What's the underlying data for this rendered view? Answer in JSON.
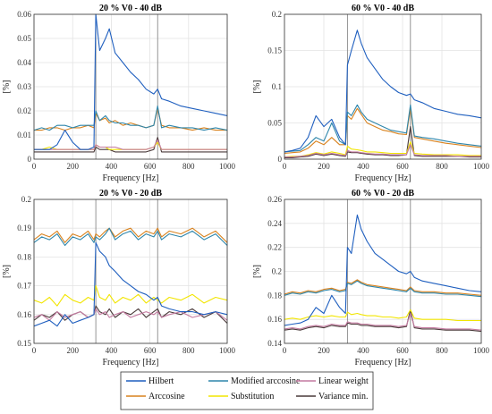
{
  "figure": {
    "legend": [
      {
        "name": "Hilbert",
        "color": "#1f5fbf"
      },
      {
        "name": "Modified arccosine",
        "color": "#2e86ab"
      },
      {
        "name": "Linear weight",
        "color": "#c47aa0"
      },
      {
        "name": "Arccosine",
        "color": "#d9821e"
      },
      {
        "name": "Substitution",
        "color": "#f2e500"
      },
      {
        "name": "Variance min.",
        "color": "#4a3a3a"
      }
    ],
    "x_ticks": [
      "0",
      "200",
      "400",
      "600",
      "800",
      "1000"
    ]
  },
  "chart_data": [
    {
      "type": "line",
      "title": "20 % V0 - 40 dB",
      "xlabel": "Frequency [Hz]",
      "ylabel": "[%]",
      "xlim": [
        0,
        1000
      ],
      "ylim": [
        0,
        0.06
      ],
      "y_ticks": [
        "0",
        "0.01",
        "0.02",
        "0.03",
        "0.04",
        "0.05",
        "0.06"
      ],
      "vlines": [
        320,
        640
      ],
      "x": [
        0,
        40,
        80,
        120,
        160,
        200,
        240,
        280,
        310,
        320,
        340,
        370,
        390,
        420,
        460,
        500,
        540,
        580,
        620,
        640,
        660,
        700,
        760,
        820,
        880,
        940,
        1000
      ],
      "series": [
        {
          "name": "Hilbert",
          "color": "#1f5fbf",
          "values": [
            0.004,
            0.004,
            0.004,
            0.006,
            0.012,
            0.007,
            0.004,
            0.004,
            0.005,
            0.06,
            0.045,
            0.05,
            0.054,
            0.044,
            0.04,
            0.036,
            0.033,
            0.029,
            0.027,
            0.029,
            0.025,
            0.024,
            0.022,
            0.021,
            0.02,
            0.019,
            0.018
          ]
        },
        {
          "name": "Modified arccosine",
          "color": "#2e86ab",
          "values": [
            0.012,
            0.013,
            0.012,
            0.014,
            0.014,
            0.013,
            0.014,
            0.014,
            0.014,
            0.02,
            0.016,
            0.018,
            0.016,
            0.015,
            0.015,
            0.014,
            0.014,
            0.013,
            0.014,
            0.022,
            0.013,
            0.014,
            0.013,
            0.013,
            0.012,
            0.013,
            0.012
          ]
        },
        {
          "name": "Linear weight",
          "color": "#c47aa0",
          "values": [
            0.004,
            0.004,
            0.004,
            0.004,
            0.004,
            0.004,
            0.004,
            0.004,
            0.004,
            0.006,
            0.005,
            0.005,
            0.005,
            0.005,
            0.004,
            0.004,
            0.004,
            0.004,
            0.005,
            0.008,
            0.004,
            0.004,
            0.004,
            0.004,
            0.004,
            0.004,
            0.004
          ]
        },
        {
          "name": "Arccosine",
          "color": "#d9821e",
          "values": [
            0.012,
            0.012,
            0.013,
            0.013,
            0.012,
            0.013,
            0.013,
            0.014,
            0.013,
            0.019,
            0.016,
            0.017,
            0.015,
            0.016,
            0.014,
            0.015,
            0.014,
            0.013,
            0.014,
            0.021,
            0.014,
            0.013,
            0.013,
            0.012,
            0.013,
            0.012,
            0.012
          ]
        },
        {
          "name": "Substitution",
          "color": "#f2e500",
          "values": [
            0.004,
            0.004,
            0.005,
            0.004,
            0.004,
            0.004,
            0.004,
            0.004,
            0.004,
            0.006,
            0.005,
            0.005,
            0.004,
            0.004,
            0.004,
            0.004,
            0.004,
            0.004,
            0.005,
            0.007,
            0.004,
            0.004,
            0.004,
            0.004,
            0.004,
            0.004,
            0.004
          ]
        },
        {
          "name": "Variance min.",
          "color": "#4a3a3a",
          "values": [
            0.003,
            0.003,
            0.003,
            0.003,
            0.003,
            0.003,
            0.003,
            0.003,
            0.003,
            0.005,
            0.004,
            0.004,
            0.004,
            0.003,
            0.003,
            0.003,
            0.003,
            0.003,
            0.004,
            0.009,
            0.003,
            0.003,
            0.003,
            0.003,
            0.003,
            0.003,
            0.003
          ]
        }
      ]
    },
    {
      "type": "line",
      "title": "60 % V0 - 40 dB",
      "xlabel": "Frequency [Hz]",
      "ylabel": "[%]",
      "xlim": [
        0,
        1000
      ],
      "ylim": [
        0,
        0.2
      ],
      "y_ticks": [
        "0",
        "0.05",
        "0.1",
        "0.15",
        "0.2"
      ],
      "vlines": [
        320,
        640
      ],
      "x": [
        0,
        40,
        80,
        120,
        160,
        200,
        240,
        280,
        310,
        320,
        340,
        370,
        390,
        420,
        460,
        500,
        540,
        580,
        620,
        640,
        660,
        700,
        760,
        820,
        880,
        940,
        1000
      ],
      "series": [
        {
          "name": "Hilbert",
          "color": "#1f5fbf",
          "values": [
            0.01,
            0.012,
            0.015,
            0.03,
            0.06,
            0.045,
            0.055,
            0.03,
            0.02,
            0.13,
            0.15,
            0.178,
            0.16,
            0.14,
            0.125,
            0.11,
            0.1,
            0.092,
            0.088,
            0.09,
            0.082,
            0.078,
            0.07,
            0.066,
            0.062,
            0.06,
            0.057
          ]
        },
        {
          "name": "Modified arccosine",
          "color": "#2e86ab",
          "values": [
            0.01,
            0.011,
            0.012,
            0.02,
            0.03,
            0.025,
            0.05,
            0.025,
            0.02,
            0.065,
            0.06,
            0.075,
            0.065,
            0.055,
            0.05,
            0.045,
            0.04,
            0.038,
            0.036,
            0.075,
            0.032,
            0.03,
            0.028,
            0.025,
            0.022,
            0.02,
            0.018
          ]
        },
        {
          "name": "Linear weight",
          "color": "#c47aa0",
          "values": [
            0.003,
            0.003,
            0.004,
            0.005,
            0.008,
            0.006,
            0.008,
            0.006,
            0.005,
            0.012,
            0.01,
            0.01,
            0.009,
            0.008,
            0.007,
            0.007,
            0.006,
            0.006,
            0.006,
            0.02,
            0.006,
            0.005,
            0.005,
            0.005,
            0.004,
            0.004,
            0.004
          ]
        },
        {
          "name": "Arccosine",
          "color": "#d9821e",
          "values": [
            0.008,
            0.009,
            0.01,
            0.015,
            0.025,
            0.02,
            0.03,
            0.02,
            0.02,
            0.06,
            0.055,
            0.07,
            0.062,
            0.05,
            0.045,
            0.04,
            0.038,
            0.035,
            0.034,
            0.07,
            0.03,
            0.028,
            0.025,
            0.022,
            0.02,
            0.018,
            0.016
          ]
        },
        {
          "name": "Substitution",
          "color": "#f2e500",
          "values": [
            0.003,
            0.004,
            0.004,
            0.006,
            0.009,
            0.007,
            0.01,
            0.008,
            0.006,
            0.018,
            0.014,
            0.013,
            0.012,
            0.01,
            0.01,
            0.009,
            0.008,
            0.008,
            0.008,
            0.024,
            0.008,
            0.007,
            0.006,
            0.006,
            0.006,
            0.005,
            0.005
          ]
        },
        {
          "name": "Variance min.",
          "color": "#4a3a3a",
          "values": [
            0.002,
            0.002,
            0.003,
            0.004,
            0.007,
            0.005,
            0.007,
            0.005,
            0.004,
            0.01,
            0.009,
            0.009,
            0.008,
            0.007,
            0.006,
            0.006,
            0.005,
            0.005,
            0.006,
            0.045,
            0.005,
            0.004,
            0.004,
            0.004,
            0.004,
            0.003,
            0.003
          ]
        }
      ]
    },
    {
      "type": "line",
      "title": "20 % V0 - 20 dB",
      "xlabel": "Frequency [Hz]",
      "ylabel": "[%]",
      "xlim": [
        0,
        1000
      ],
      "ylim": [
        0.15,
        0.2
      ],
      "y_ticks": [
        "0.15",
        "0.16",
        "0.17",
        "0.18",
        "0.19",
        "0.2"
      ],
      "vlines": [
        320,
        640
      ],
      "x": [
        0,
        40,
        80,
        120,
        160,
        200,
        240,
        280,
        310,
        320,
        340,
        370,
        390,
        420,
        460,
        500,
        540,
        580,
        620,
        640,
        660,
        700,
        760,
        820,
        880,
        940,
        1000
      ],
      "series": [
        {
          "name": "Hilbert",
          "color": "#1f5fbf",
          "values": [
            0.156,
            0.157,
            0.158,
            0.156,
            0.16,
            0.157,
            0.158,
            0.159,
            0.16,
            0.185,
            0.182,
            0.18,
            0.177,
            0.175,
            0.172,
            0.17,
            0.168,
            0.167,
            0.165,
            0.166,
            0.163,
            0.162,
            0.161,
            0.161,
            0.16,
            0.161,
            0.16
          ]
        },
        {
          "name": "Modified arccosine",
          "color": "#2e86ab",
          "values": [
            0.185,
            0.187,
            0.186,
            0.188,
            0.184,
            0.187,
            0.186,
            0.188,
            0.185,
            0.187,
            0.186,
            0.188,
            0.19,
            0.186,
            0.188,
            0.189,
            0.186,
            0.188,
            0.187,
            0.189,
            0.186,
            0.188,
            0.187,
            0.189,
            0.186,
            0.188,
            0.184
          ]
        },
        {
          "name": "Linear weight",
          "color": "#c47aa0",
          "values": [
            0.159,
            0.16,
            0.158,
            0.161,
            0.159,
            0.16,
            0.161,
            0.159,
            0.16,
            0.162,
            0.16,
            0.161,
            0.159,
            0.16,
            0.161,
            0.159,
            0.16,
            0.161,
            0.16,
            0.161,
            0.159,
            0.16,
            0.161,
            0.159,
            0.16,
            0.161,
            0.158
          ]
        },
        {
          "name": "Arccosine",
          "color": "#d9821e",
          "values": [
            0.186,
            0.188,
            0.187,
            0.189,
            0.185,
            0.188,
            0.187,
            0.189,
            0.186,
            0.188,
            0.187,
            0.189,
            0.19,
            0.187,
            0.189,
            0.19,
            0.187,
            0.189,
            0.188,
            0.19,
            0.187,
            0.189,
            0.188,
            0.19,
            0.187,
            0.189,
            0.185
          ]
        },
        {
          "name": "Substitution",
          "color": "#f2e500",
          "values": [
            0.165,
            0.164,
            0.166,
            0.163,
            0.167,
            0.165,
            0.164,
            0.166,
            0.165,
            0.17,
            0.166,
            0.165,
            0.167,
            0.164,
            0.166,
            0.165,
            0.167,
            0.164,
            0.166,
            0.165,
            0.164,
            0.166,
            0.165,
            0.167,
            0.164,
            0.166,
            0.165
          ]
        },
        {
          "name": "Variance min.",
          "color": "#4a3a3a",
          "values": [
            0.158,
            0.16,
            0.159,
            0.161,
            0.158,
            0.16,
            0.161,
            0.159,
            0.16,
            0.163,
            0.161,
            0.16,
            0.162,
            0.159,
            0.161,
            0.16,
            0.162,
            0.159,
            0.161,
            0.162,
            0.159,
            0.161,
            0.16,
            0.162,
            0.159,
            0.161,
            0.157
          ]
        }
      ]
    },
    {
      "type": "line",
      "title": "60 % V0 - 20 dB",
      "xlabel": "Frequency [Hz]",
      "ylabel": "[%]",
      "xlim": [
        0,
        1000
      ],
      "ylim": [
        0.14,
        0.26
      ],
      "y_ticks": [
        "0.14",
        "0.16",
        "0.18",
        "0.2",
        "0.22",
        "0.24",
        "0.26"
      ],
      "vlines": [
        320,
        640
      ],
      "x": [
        0,
        40,
        80,
        120,
        160,
        200,
        240,
        280,
        310,
        320,
        340,
        370,
        390,
        420,
        460,
        500,
        540,
        580,
        620,
        640,
        660,
        700,
        760,
        820,
        880,
        940,
        1000
      ],
      "series": [
        {
          "name": "Hilbert",
          "color": "#1f5fbf",
          "values": [
            0.155,
            0.156,
            0.157,
            0.16,
            0.17,
            0.165,
            0.18,
            0.17,
            0.165,
            0.22,
            0.215,
            0.247,
            0.235,
            0.225,
            0.215,
            0.21,
            0.205,
            0.2,
            0.198,
            0.2,
            0.195,
            0.192,
            0.19,
            0.188,
            0.186,
            0.184,
            0.183
          ]
        },
        {
          "name": "Modified arccosine",
          "color": "#2e86ab",
          "values": [
            0.18,
            0.182,
            0.181,
            0.183,
            0.182,
            0.184,
            0.185,
            0.183,
            0.184,
            0.19,
            0.189,
            0.192,
            0.19,
            0.188,
            0.187,
            0.186,
            0.185,
            0.184,
            0.183,
            0.186,
            0.183,
            0.182,
            0.182,
            0.181,
            0.181,
            0.18,
            0.179
          ]
        },
        {
          "name": "Linear weight",
          "color": "#c47aa0",
          "values": [
            0.152,
            0.153,
            0.152,
            0.154,
            0.155,
            0.154,
            0.156,
            0.155,
            0.155,
            0.158,
            0.157,
            0.157,
            0.156,
            0.156,
            0.155,
            0.155,
            0.155,
            0.154,
            0.155,
            0.165,
            0.154,
            0.153,
            0.153,
            0.152,
            0.152,
            0.152,
            0.151
          ]
        },
        {
          "name": "Arccosine",
          "color": "#d9821e",
          "values": [
            0.181,
            0.183,
            0.182,
            0.184,
            0.183,
            0.185,
            0.186,
            0.184,
            0.185,
            0.191,
            0.19,
            0.193,
            0.191,
            0.189,
            0.188,
            0.187,
            0.186,
            0.185,
            0.184,
            0.187,
            0.184,
            0.183,
            0.183,
            0.182,
            0.182,
            0.181,
            0.18
          ]
        },
        {
          "name": "Substitution",
          "color": "#f2e500",
          "values": [
            0.16,
            0.161,
            0.16,
            0.162,
            0.163,
            0.162,
            0.163,
            0.162,
            0.162,
            0.166,
            0.164,
            0.165,
            0.164,
            0.163,
            0.163,
            0.162,
            0.162,
            0.161,
            0.162,
            0.168,
            0.161,
            0.16,
            0.16,
            0.16,
            0.159,
            0.159,
            0.159
          ]
        },
        {
          "name": "Variance min.",
          "color": "#4a3a3a",
          "values": [
            0.151,
            0.152,
            0.151,
            0.153,
            0.154,
            0.153,
            0.155,
            0.154,
            0.154,
            0.157,
            0.156,
            0.156,
            0.155,
            0.155,
            0.154,
            0.154,
            0.154,
            0.153,
            0.154,
            0.168,
            0.153,
            0.152,
            0.152,
            0.151,
            0.151,
            0.151,
            0.15
          ]
        }
      ]
    }
  ]
}
